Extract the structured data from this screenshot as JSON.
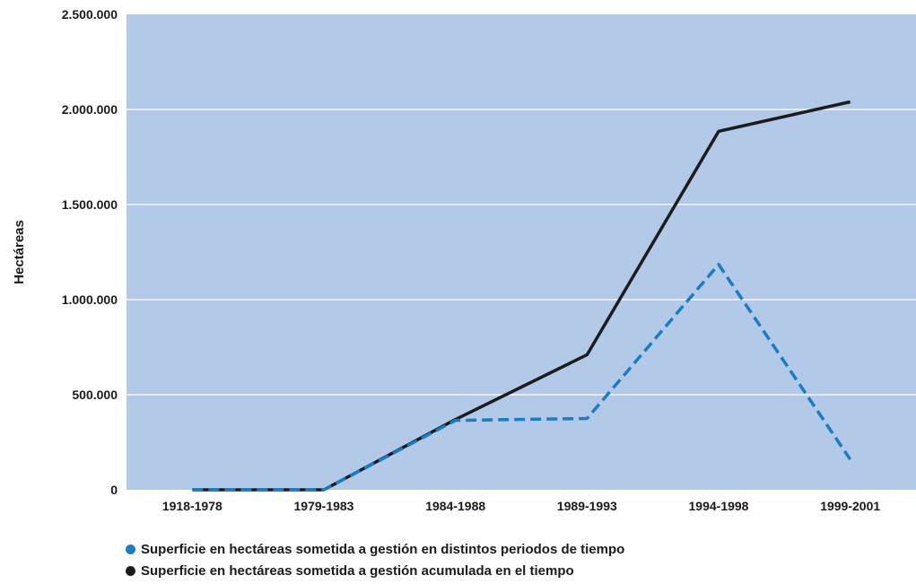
{
  "chart_data": {
    "type": "line",
    "title": "",
    "xlabel": "",
    "ylabel": "Hectáreas",
    "categories": [
      "1918-1978",
      "1979-1983",
      "1984-1988",
      "1989-1993",
      "1994-1998",
      "1999-2001"
    ],
    "ylim": [
      0,
      2500000
    ],
    "yticks": [
      0,
      500000,
      1000000,
      1500000,
      2000000,
      2500000
    ],
    "ytick_labels": [
      "0",
      "500.000",
      "1.000.000",
      "1.500.000",
      "2.000.000",
      "2.500.000"
    ],
    "grid": true,
    "legend_position": "bottom-left",
    "background_color": "#b3c9e8",
    "series": [
      {
        "name": "Superficie en hectáreas sometida a gestión en distintos periodos de tiempo",
        "values": [
          0,
          0,
          365000,
          375000,
          1185000,
          160000
        ],
        "color": "#1a7dc4",
        "style": "dashed"
      },
      {
        "name": "Superficie en hectáreas sometida a gestión acumulada en el tiempo",
        "values": [
          0,
          0,
          370000,
          710000,
          1885000,
          2040000
        ],
        "color": "#1c1c1c",
        "style": "solid"
      }
    ]
  }
}
